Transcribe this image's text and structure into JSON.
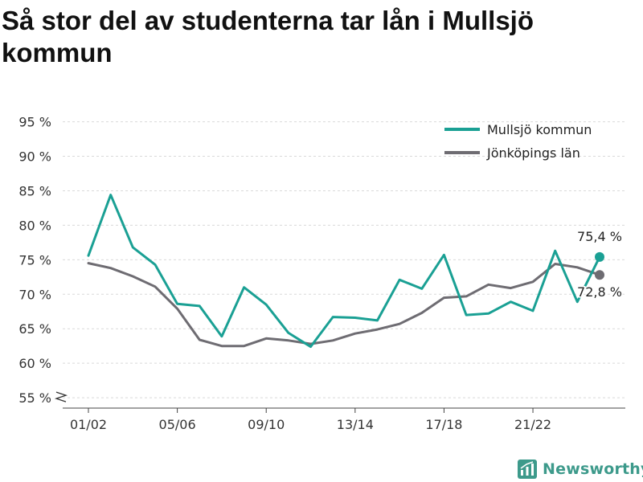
{
  "title": "Så stor del av studenterna tar lån i Mullsjö kommun",
  "brand": {
    "name": "Newsworthy",
    "icon": "newsworthy-logo-icon",
    "color": "#3d9a8b"
  },
  "colors": {
    "accent": "#1aa094",
    "secondary": "#6e6c72",
    "grid": "#d9d9d9",
    "axis": "#444444"
  },
  "chart_data": {
    "type": "line",
    "y_tick_labels": [
      "55 %",
      "60 %",
      "65 %",
      "70 %",
      "75 %",
      "80 %",
      "85 %",
      "90 %",
      "95 %"
    ],
    "y_ticks": [
      55,
      60,
      65,
      70,
      75,
      80,
      85,
      90,
      95
    ],
    "ylim": [
      53.5,
      96
    ],
    "y_axis_break": true,
    "x_tick_labels": [
      "01/02",
      "05/06",
      "09/10",
      "13/14",
      "17/18",
      "21/22"
    ],
    "x_tick_indices": [
      0,
      4,
      8,
      12,
      16,
      20
    ],
    "grid": true,
    "legend_position": "top-right",
    "series": [
      {
        "name": "Mullsjö kommun",
        "color": "#1aa094",
        "values": [
          75.6,
          84.4,
          76.8,
          74.3,
          68.6,
          68.3,
          63.9,
          71.0,
          68.5,
          64.4,
          62.4,
          66.7,
          66.6,
          66.2,
          72.1,
          70.8,
          75.7,
          67.0,
          67.2,
          68.9,
          67.6,
          76.3,
          68.9,
          75.4
        ],
        "end_label": "75,4 %"
      },
      {
        "name": "Jönköpings län",
        "color": "#6e6c72",
        "values": [
          74.5,
          73.8,
          72.6,
          71.1,
          67.9,
          63.4,
          62.5,
          62.5,
          63.6,
          63.3,
          62.8,
          63.3,
          64.3,
          64.9,
          65.7,
          67.3,
          69.5,
          69.7,
          71.4,
          70.9,
          71.8,
          74.4,
          73.9,
          72.8
        ],
        "end_label": "72,8 %"
      }
    ]
  }
}
